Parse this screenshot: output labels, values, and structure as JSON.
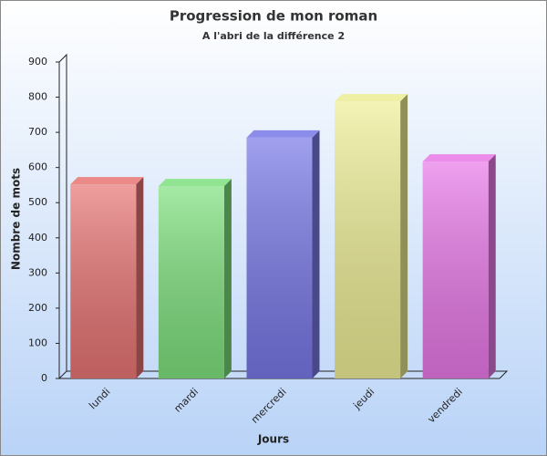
{
  "chart_data": {
    "type": "bar3d",
    "title": "Progression de mon roman",
    "subtitle": "A l'abri de la différence 2",
    "x_label": "Jours",
    "y_label": "Nombre de mots",
    "categories": [
      "lundi",
      "mardi",
      "mercredi",
      "jeudi",
      "vendredi"
    ],
    "values": [
      552,
      547,
      685,
      788,
      617
    ],
    "colors": [
      "#e87474",
      "#7ee07e",
      "#7878e8",
      "#eeee96",
      "#e878e8"
    ],
    "ylim": [
      0,
      900
    ],
    "yticks": [
      0,
      100,
      200,
      300,
      400,
      500,
      600,
      700,
      800,
      900
    ]
  }
}
